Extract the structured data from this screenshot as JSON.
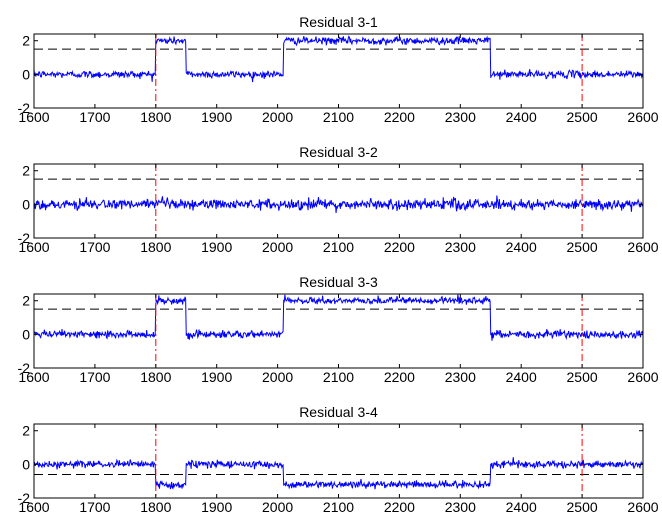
{
  "chart_data": [
    {
      "type": "line",
      "title": "Residual 3-1",
      "xlim": [
        1600,
        2600
      ],
      "ylim": [
        -2,
        2.4
      ],
      "xticks": [
        1600,
        1700,
        1800,
        1900,
        2000,
        2100,
        2200,
        2300,
        2400,
        2500,
        2600
      ],
      "xtick_labels": [
        "1600",
        "1700",
        "1800",
        "1900",
        "2000",
        "2100",
        "2200",
        "2300",
        "2400",
        "2500",
        "2600"
      ],
      "yticks": [
        -2,
        0,
        2
      ],
      "ytick_labels": [
        "-2",
        "0",
        "2"
      ],
      "threshold": 1.5,
      "markers": [
        1800,
        2500
      ],
      "segments": [
        {
          "x_start": 1600,
          "x_end": 1800,
          "level": 0,
          "noise": 0.22
        },
        {
          "x_start": 1800,
          "x_end": 1850,
          "level": 2,
          "noise": 0.22
        },
        {
          "x_start": 1850,
          "x_end": 2010,
          "level": 0,
          "noise": 0.22
        },
        {
          "x_start": 2010,
          "x_end": 2350,
          "level": 2,
          "noise": 0.22
        },
        {
          "x_start": 2350,
          "x_end": 2600,
          "level": 0,
          "noise": 0.22
        }
      ]
    },
    {
      "type": "line",
      "title": "Residual 3-2",
      "xlim": [
        1600,
        2600
      ],
      "ylim": [
        -2,
        2.4
      ],
      "xticks": [
        1600,
        1700,
        1800,
        1900,
        2000,
        2100,
        2200,
        2300,
        2400,
        2500,
        2600
      ],
      "xtick_labels": [
        "1600",
        "1700",
        "1800",
        "1900",
        "2000",
        "2100",
        "2200",
        "2300",
        "2400",
        "2500",
        "2600"
      ],
      "yticks": [
        -2,
        0,
        2
      ],
      "ytick_labels": [
        "-2",
        "0",
        "2"
      ],
      "threshold": 1.5,
      "markers": [
        1800,
        2500
      ],
      "segments": [
        {
          "x_start": 1600,
          "x_end": 2600,
          "level": 0,
          "noise": 0.32
        }
      ]
    },
    {
      "type": "line",
      "title": "Residual 3-3",
      "xlim": [
        1600,
        2600
      ],
      "ylim": [
        -2,
        2.4
      ],
      "xticks": [
        1600,
        1700,
        1800,
        1900,
        2000,
        2100,
        2200,
        2300,
        2400,
        2500,
        2600
      ],
      "xtick_labels": [
        "1600",
        "1700",
        "1800",
        "1900",
        "2000",
        "2100",
        "2200",
        "2300",
        "2400",
        "2500",
        "2600"
      ],
      "yticks": [
        -2,
        0,
        2
      ],
      "ytick_labels": [
        "-2",
        "0",
        "2"
      ],
      "threshold": 1.5,
      "markers": [
        1800,
        2500
      ],
      "segments": [
        {
          "x_start": 1600,
          "x_end": 1800,
          "level": 0,
          "noise": 0.22
        },
        {
          "x_start": 1800,
          "x_end": 1850,
          "level": 2,
          "noise": 0.22
        },
        {
          "x_start": 1850,
          "x_end": 2010,
          "level": 0,
          "noise": 0.22
        },
        {
          "x_start": 2010,
          "x_end": 2350,
          "level": 2,
          "noise": 0.22
        },
        {
          "x_start": 2350,
          "x_end": 2600,
          "level": 0,
          "noise": 0.22
        }
      ]
    },
    {
      "type": "line",
      "title": "Residual 3-4",
      "xlim": [
        1600,
        2600
      ],
      "ylim": [
        -2,
        2.4
      ],
      "xticks": [
        1600,
        1700,
        1800,
        1900,
        2000,
        2100,
        2200,
        2300,
        2400,
        2500,
        2600
      ],
      "xtick_labels": [
        "1600",
        "1700",
        "1800",
        "1900",
        "2000",
        "2100",
        "2200",
        "2300",
        "2400",
        "2500",
        "2600"
      ],
      "yticks": [
        -2,
        0,
        2
      ],
      "ytick_labels": [
        "-2",
        "0",
        "2"
      ],
      "threshold": -0.6,
      "markers": [
        1800,
        2500
      ],
      "segments": [
        {
          "x_start": 1600,
          "x_end": 1800,
          "level": 0,
          "noise": 0.22
        },
        {
          "x_start": 1800,
          "x_end": 1850,
          "level": -1.2,
          "noise": 0.22
        },
        {
          "x_start": 1850,
          "x_end": 2010,
          "level": 0,
          "noise": 0.22
        },
        {
          "x_start": 2010,
          "x_end": 2350,
          "level": -1.2,
          "noise": 0.22
        },
        {
          "x_start": 2350,
          "x_end": 2600,
          "level": 0,
          "noise": 0.22
        }
      ]
    }
  ],
  "colors": {
    "signal": "#0000ff",
    "marker": "#ff0000",
    "threshold": "#000000",
    "axis": "#000000"
  }
}
